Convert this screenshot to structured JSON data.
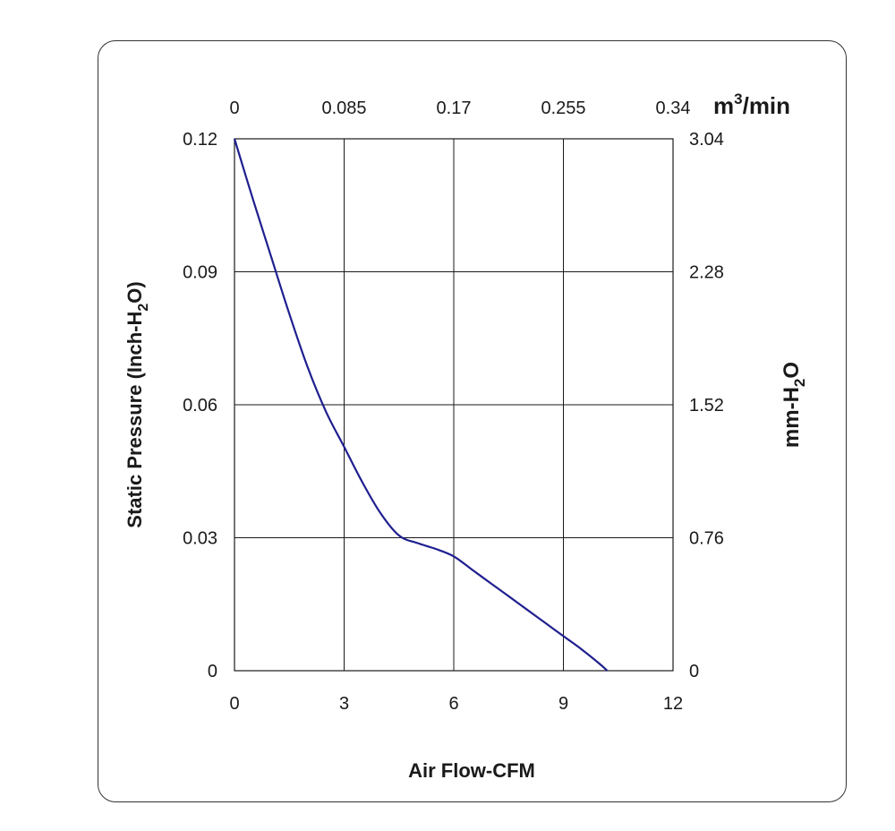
{
  "chart_data": {
    "type": "line",
    "xlabel": "Air Flow-CFM",
    "ylabel": "Static Pressure (Inch-H2O)",
    "ylabel_parts": [
      "Static Pressure (Inch-H",
      "2",
      "O)"
    ],
    "x2label_parts": [
      "m",
      "3",
      "/min"
    ],
    "y2label_parts": [
      "mm-H",
      "2",
      "O"
    ],
    "xlim": [
      0,
      12
    ],
    "ylim": [
      0,
      0.12
    ],
    "x_ticks": [
      "0",
      "3",
      "6",
      "9",
      "12"
    ],
    "y_ticks": [
      "0",
      "0.03",
      "0.06",
      "0.09",
      "0.12"
    ],
    "x2_ticks": [
      "0",
      "0.085",
      "0.17",
      "0.255",
      "0.34"
    ],
    "y2_ticks": [
      "0",
      "0.76",
      "1.52",
      "2.28",
      "3.04"
    ],
    "grid": true,
    "line_color": "#1f1f8f",
    "series": [
      {
        "x": [
          0,
          0.5,
          1.0,
          1.5,
          2.0,
          2.5,
          3.0,
          3.5,
          4.0,
          4.5,
          5.0,
          5.5,
          6.0,
          6.5,
          7.0,
          7.5,
          8.0,
          8.5,
          9.0,
          9.5,
          10.0,
          10.2
        ],
        "y": [
          0.12,
          0.1065,
          0.0935,
          0.0805,
          0.0685,
          0.0585,
          0.0505,
          0.0425,
          0.0355,
          0.0305,
          0.0288,
          0.0275,
          0.0258,
          0.0228,
          0.0198,
          0.0168,
          0.0138,
          0.0108,
          0.0078,
          0.0048,
          0.0015,
          0
        ]
      }
    ]
  }
}
